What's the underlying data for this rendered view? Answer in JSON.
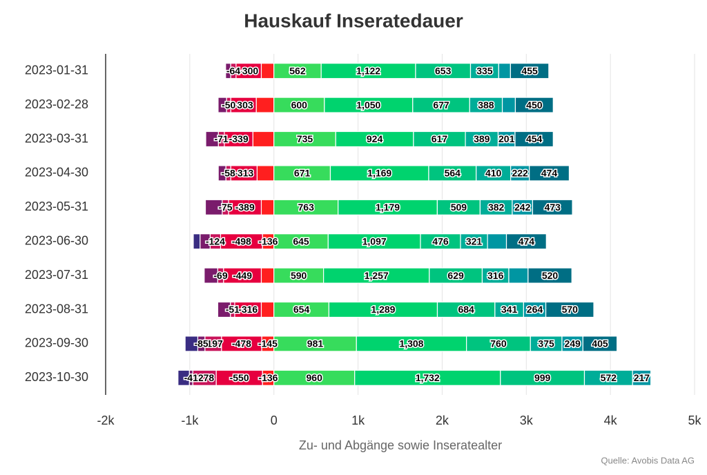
{
  "chart_data": {
    "type": "diverging_stacked_bar",
    "title": "Hauskauf Inseratedauer",
    "xlabel": "Zu- und Abgänge sowie Inseratealter",
    "source": "Quelle: Avobis Data AG",
    "categories": [
      "2023-01-31",
      "2023-02-28",
      "2023-03-31",
      "2023-04-30",
      "2023-05-31",
      "2023-06-30",
      "2023-07-31",
      "2023-08-31",
      "2023-09-30",
      "2023-10-30"
    ],
    "xlim": [
      -2000,
      5000
    ],
    "xticks": [
      {
        "value": -2000,
        "label": "-2k"
      },
      {
        "value": -1000,
        "label": "-1k"
      },
      0,
      {
        "value": 1000,
        "label": "1k"
      },
      {
        "value": 2000,
        "label": "2k"
      },
      {
        "value": 3000,
        "label": "3k"
      },
      {
        "value": 4000,
        "label": "4k"
      },
      {
        "value": 5000,
        "label": "5k"
      }
    ],
    "grid": true,
    "series": [
      {
        "color": "#ff1f1f",
        "values": [
          -150,
          -210,
          -250,
          -200,
          -150,
          -136,
          -150,
          -150,
          -145,
          -136
        ],
        "value_labels": [
          null,
          null,
          null,
          null,
          null,
          "-136",
          null,
          null,
          "-145",
          "-136"
        ]
      },
      {
        "color": "#e6003f",
        "values": [
          -300,
          -303,
          -339,
          -313,
          -389,
          -498,
          -449,
          -316,
          -478,
          -550
        ],
        "value_labels": [
          "-300",
          "-303",
          "-339",
          "-313",
          "-389",
          "-498",
          "-449",
          "-316",
          "-478",
          "-550"
        ]
      },
      {
        "color": "#c8145a",
        "values": [
          -64,
          -50,
          -71,
          -58,
          -75,
          -124,
          -69,
          -51,
          -197,
          -278
        ],
        "value_labels": [
          "-64",
          "-50",
          "-71",
          "-58",
          "-75",
          "-124",
          "-69",
          "-51",
          "-197",
          "-278"
        ]
      },
      {
        "color": "#7a1c6c",
        "values": [
          -60,
          -100,
          -150,
          -90,
          -200,
          -120,
          -160,
          -150,
          -85,
          -41
        ],
        "value_labels": [
          null,
          null,
          null,
          null,
          null,
          null,
          null,
          null,
          "-85",
          "-41"
        ]
      },
      {
        "color": "#3a2d82",
        "values": [
          null,
          null,
          null,
          null,
          null,
          -80,
          null,
          null,
          -150,
          -135
        ],
        "value_labels": [
          null,
          null,
          null,
          null,
          null,
          null,
          null,
          null,
          null,
          null
        ]
      },
      {
        "color": "#37dc5c",
        "values": [
          562,
          600,
          735,
          671,
          763,
          645,
          590,
          654,
          981,
          960
        ],
        "value_labels": [
          "562",
          "600",
          "735",
          "671",
          "763",
          "645",
          "590",
          "654",
          "981",
          "960"
        ]
      },
      {
        "color": "#00d36e",
        "values": [
          1122,
          1050,
          924,
          1169,
          1179,
          1097,
          1257,
          1289,
          1308,
          1732
        ],
        "value_labels": [
          "1,122",
          "1,050",
          "924",
          "1,169",
          "1,179",
          "1,097",
          "1,257",
          "1,289",
          "1,308",
          "1,732"
        ]
      },
      {
        "color": "#00c47f",
        "values": [
          653,
          677,
          617,
          564,
          509,
          476,
          629,
          684,
          760,
          999
        ],
        "value_labels": [
          "653",
          "677",
          "617",
          "564",
          "509",
          "476",
          "629",
          "684",
          "760",
          "999"
        ]
      },
      {
        "color": "#00ad98",
        "values": [
          335,
          388,
          389,
          410,
          382,
          321,
          316,
          341,
          375,
          572
        ],
        "value_labels": [
          "335",
          "388",
          "389",
          "410",
          "382",
          "321",
          "316",
          "341",
          "375",
          "572"
        ]
      },
      {
        "color": "#0096a2",
        "values": [
          140,
          155,
          201,
          222,
          242,
          225,
          229,
          264,
          249,
          217
        ],
        "value_labels": [
          null,
          null,
          "201",
          "222",
          "242",
          null,
          null,
          "264",
          "249",
          "217"
        ]
      },
      {
        "color": "#006e84",
        "values": [
          455,
          450,
          454,
          474,
          473,
          474,
          520,
          570,
          405,
          null
        ],
        "value_labels": [
          "455",
          "450",
          "454",
          "474",
          "473",
          "474",
          "520",
          "570",
          "405",
          null
        ]
      }
    ]
  }
}
